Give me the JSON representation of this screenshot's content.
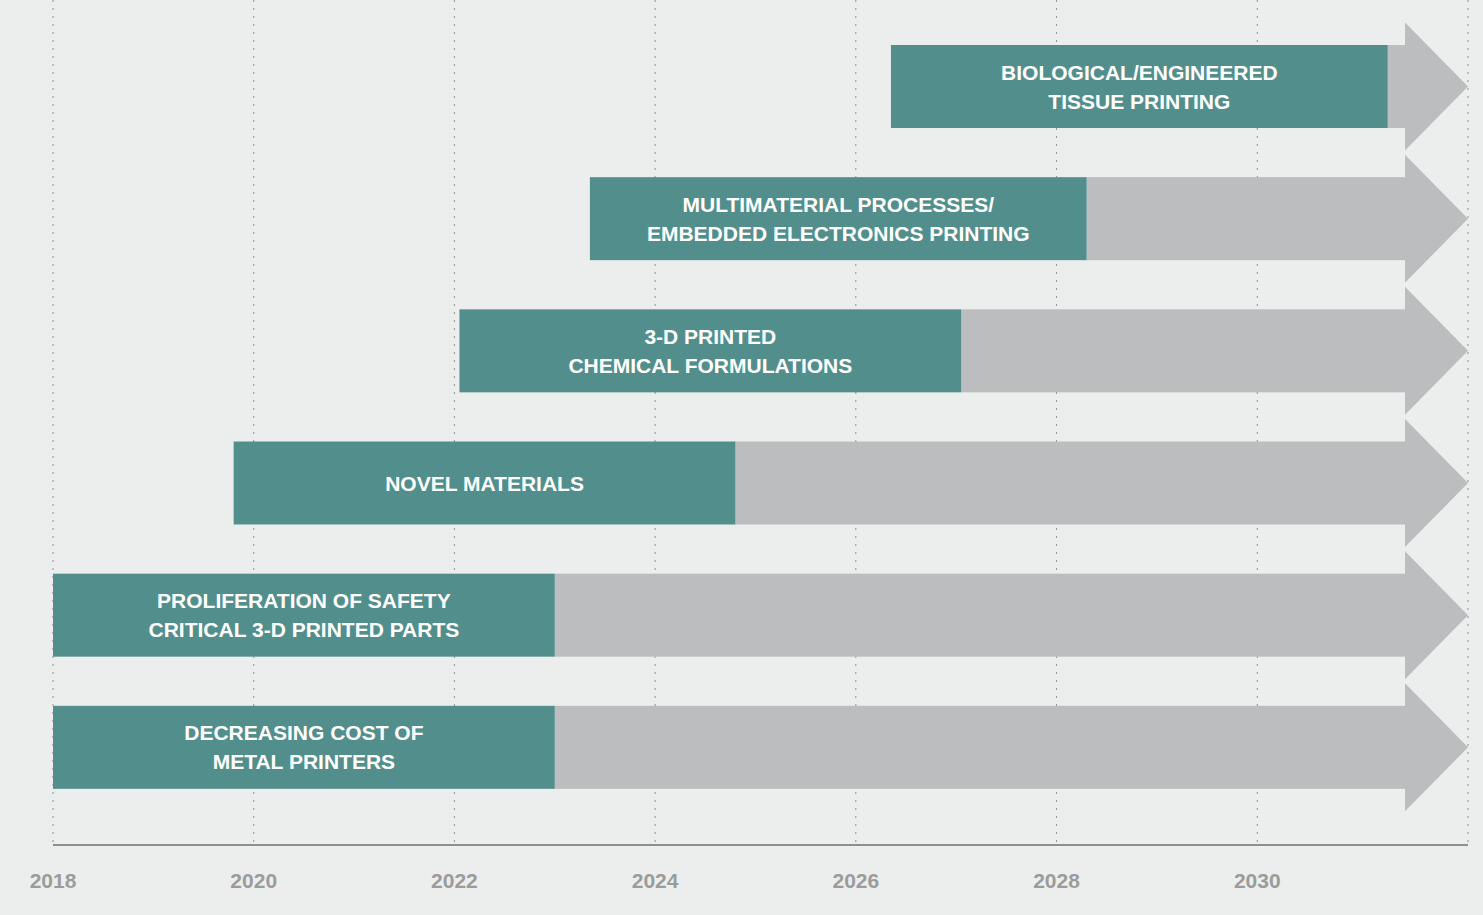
{
  "chart_data": {
    "type": "bar",
    "orientation": "horizontal",
    "categories": [
      "BIOLOGICAL/ENGINEERED\nTISSUE PRINTING",
      "MULTIMATERIAL PROCESSES/\nEMBEDDED ELECTRONICS PRINTING",
      "3-D PRINTED\nCHEMICAL FORMULATIONS",
      "NOVEL MATERIALS",
      "PROLIFERATION OF SAFETY\nCRITICAL 3-D PRINTED PARTS",
      "DECREASING COST OF\nMETAL PRINTERS"
    ],
    "start": [
      2026.35,
      2023.35,
      2022.05,
      2019.8,
      2018,
      2018
    ],
    "end": [
      2031.3,
      2028.3,
      2027.05,
      2024.8,
      2023,
      2023
    ],
    "color": "#528f8c",
    "xlim": [
      2018,
      2032.1
    ],
    "xticks": [
      2018,
      2020,
      2022,
      2024,
      2026,
      2028,
      2030
    ],
    "grid": true,
    "tick_labels": "x"
  }
}
